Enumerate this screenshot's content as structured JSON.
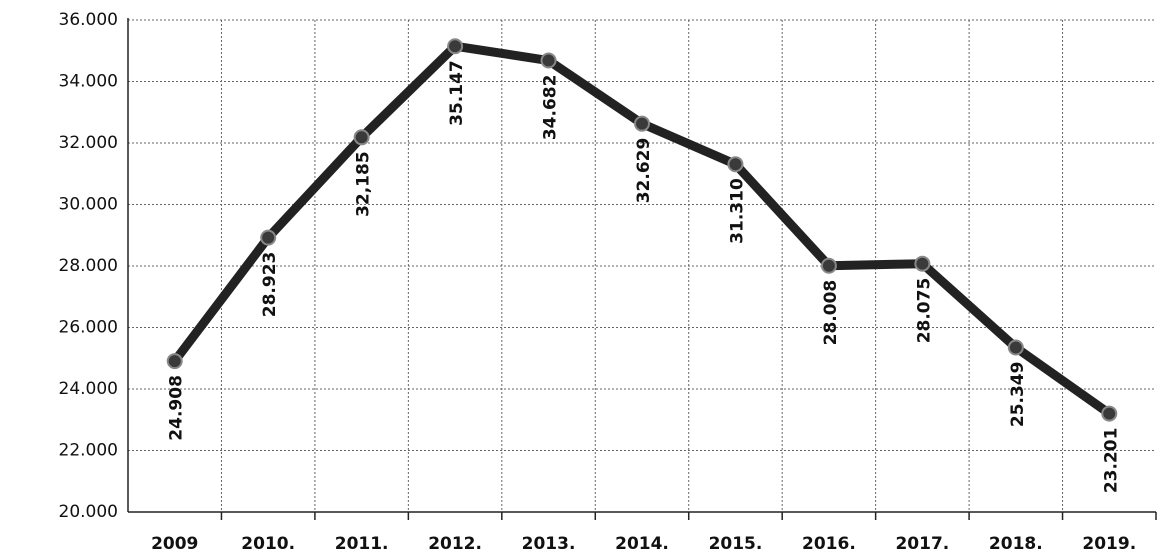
{
  "chart_data": {
    "type": "line",
    "categories": [
      "2009",
      "2010.",
      "2011.",
      "2012.",
      "2013.",
      "2014.",
      "2015.",
      "2016.",
      "2017.",
      "2018.",
      "2019."
    ],
    "series": [
      {
        "color": "#222222",
        "values": [
          24908,
          28923,
          32185,
          35147,
          34682,
          32629,
          31310,
          28008,
          28075,
          25349,
          23201
        ],
        "value_labels": [
          "24.908",
          "28.923",
          "32,185",
          "35.147",
          "34.682",
          "32.629",
          "31.310",
          "28.008",
          "28.075",
          "25.349",
          "23.201"
        ]
      }
    ],
    "ylim": [
      20000,
      36000
    ],
    "yticks": [
      {
        "value": 20000,
        "label": "20.000"
      },
      {
        "value": 22000,
        "label": "22.000"
      },
      {
        "value": 24000,
        "label": "24.000"
      },
      {
        "value": 26000,
        "label": "26.000"
      },
      {
        "value": 28000,
        "label": "28.000"
      },
      {
        "value": 30000,
        "label": "30.000"
      },
      {
        "value": 32000,
        "label": "32.000"
      },
      {
        "value": 34000,
        "label": "34.000"
      },
      {
        "value": 36000,
        "label": "36.000"
      }
    ],
    "grid": true
  }
}
